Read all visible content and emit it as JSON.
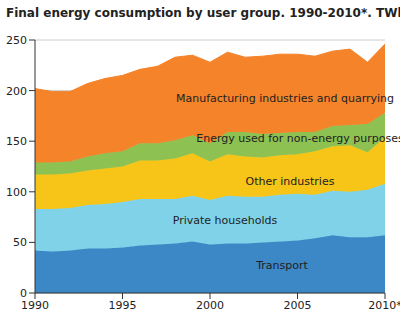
{
  "chart_data": {
    "type": "area",
    "title": "Final energy consumption by user group. 1990-2010*. TWh",
    "stacked": true,
    "grid": true,
    "x": [
      1990,
      1991,
      1992,
      1993,
      1994,
      1995,
      1996,
      1997,
      1998,
      1999,
      2000,
      2001,
      2002,
      2003,
      2004,
      2005,
      2006,
      2007,
      2008,
      2009,
      2010
    ],
    "xlim": [
      1990,
      2010
    ],
    "xticks": [
      1990,
      1995,
      2000,
      2005,
      {
        "value": 2010,
        "label": "2010*"
      }
    ],
    "ylim": [
      0,
      250
    ],
    "yticks": [
      0,
      50,
      100,
      150,
      200,
      250
    ],
    "series": [
      {
        "name": "Transport",
        "color": "#3c87c6",
        "values": [
          42,
          41,
          42,
          44,
          44,
          45,
          47,
          48,
          49,
          51,
          48,
          49,
          49,
          50,
          51,
          52,
          54,
          57,
          55,
          55,
          57
        ]
      },
      {
        "name": "Private households",
        "color": "#80d2e8",
        "values": [
          41,
          42,
          42,
          43,
          44,
          45,
          46,
          45,
          44,
          45,
          44,
          47,
          46,
          45,
          46,
          46,
          43,
          44,
          45,
          47,
          51
        ]
      },
      {
        "name": "Other industries",
        "color": "#f7c418",
        "values": [
          34,
          34,
          34,
          34,
          35,
          35,
          38,
          38,
          40,
          42,
          38,
          41,
          40,
          39,
          39,
          39,
          43,
          44,
          46,
          37,
          46
        ]
      },
      {
        "name": "Energy used for non-energy purposes",
        "color": "#8dc152",
        "values": [
          12,
          12,
          12,
          14,
          15,
          15,
          17,
          17,
          18,
          18,
          18,
          22,
          24,
          23,
          22,
          22,
          19,
          20,
          20,
          28,
          24
        ]
      },
      {
        "name": "Manufacturing industries and quarrying",
        "color": "#f4832a",
        "values": [
          73,
          70,
          69,
          72,
          74,
          75,
          73,
          76,
          82,
          79,
          80,
          79,
          74,
          77,
          78,
          77,
          75,
          74,
          75,
          61,
          68
        ]
      }
    ]
  }
}
